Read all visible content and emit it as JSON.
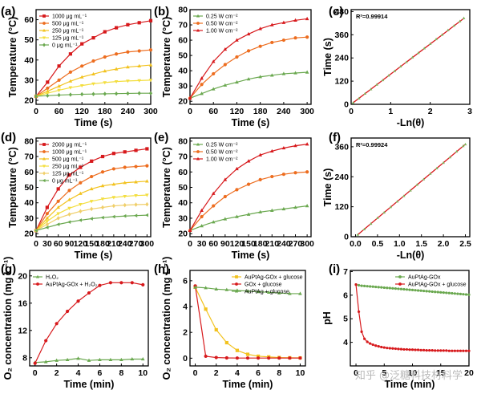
{
  "watermark": "知乎 @泛糖科技材料学",
  "chart_data": [
    {
      "id": "a",
      "label": "(a)",
      "type": "line",
      "xlabel": "Time (s)",
      "ylabel": "Temperature (°C)",
      "xlim": [
        0,
        300
      ],
      "ylim": [
        18,
        65
      ],
      "xticks": [
        0,
        60,
        120,
        180,
        240,
        300
      ],
      "yticks": [
        20,
        30,
        40,
        50,
        60
      ],
      "legend": "top-left",
      "x": [
        0,
        30,
        60,
        90,
        120,
        150,
        180,
        210,
        240,
        270,
        300
      ],
      "series": [
        {
          "name": "1000 μg mL⁻¹",
          "color": "#d7191c",
          "marker": "square",
          "values": [
            22,
            29,
            37,
            43,
            48,
            51,
            54,
            56,
            57.5,
            58.5,
            59.5
          ]
        },
        {
          "name": "500 μg mL⁻¹",
          "color": "#ed6d1f",
          "marker": "circle",
          "values": [
            22,
            26,
            30,
            34,
            37,
            39.5,
            41.5,
            43,
            44,
            44.5,
            45
          ]
        },
        {
          "name": "250 μg mL⁻¹",
          "color": "#f2c21e",
          "marker": "triangle",
          "values": [
            22,
            24.5,
            27,
            29.5,
            31.5,
            33,
            34.5,
            35.5,
            36.5,
            37,
            37.5
          ]
        },
        {
          "name": "125 μg mL⁻¹",
          "color": "#f3de3e",
          "marker": "triangle-down",
          "values": [
            22,
            23.5,
            25,
            26.3,
            27.3,
            28.2,
            28.8,
            29.3,
            29.6,
            29.8,
            30
          ]
        },
        {
          "name": "0 μg mL⁻¹",
          "color": "#6aa84f",
          "marker": "diamond",
          "values": [
            22,
            22.3,
            22.6,
            22.8,
            23,
            23.1,
            23.2,
            23.3,
            23.4,
            23.5,
            23.5
          ]
        }
      ]
    },
    {
      "id": "b",
      "label": "(b)",
      "type": "line",
      "xlabel": "Time (s)",
      "ylabel": "Temperature (°C)",
      "xlim": [
        0,
        310
      ],
      "ylim": [
        18,
        80
      ],
      "xticks": [
        0,
        60,
        120,
        180,
        240,
        300
      ],
      "yticks": [
        20,
        30,
        40,
        50,
        60,
        70,
        80
      ],
      "legend": "top-left",
      "x": [
        0,
        30,
        60,
        90,
        120,
        150,
        180,
        210,
        240,
        270,
        300
      ],
      "series": [
        {
          "name": "0.25 W cm⁻²",
          "color": "#6aa84f",
          "marker": "triangle",
          "values": [
            22,
            25,
            28,
            30.5,
            32.5,
            34.5,
            36,
            37,
            38,
            38.5,
            39
          ]
        },
        {
          "name": "0.50 W cm⁻²",
          "color": "#ed6d1f",
          "marker": "circle",
          "values": [
            22,
            31,
            38,
            44,
            49,
            53,
            56,
            58.5,
            60,
            61.5,
            62
          ]
        },
        {
          "name": "1.00 W cm⁻²",
          "color": "#d7191c",
          "marker": "triangle",
          "values": [
            22,
            35,
            46,
            54,
            60,
            64,
            67.5,
            70,
            71.5,
            73,
            74
          ]
        }
      ]
    },
    {
      "id": "c",
      "label": "(c)",
      "type": "scatter",
      "xlabel": "-Ln(θ)",
      "ylabel": "Time (s)",
      "xlim": [
        0,
        3
      ],
      "ylim": [
        0,
        490
      ],
      "xticks": [
        0,
        1,
        2,
        3
      ],
      "yticks": [
        0,
        120,
        240,
        360,
        480
      ],
      "annotation": "R²=0.99914",
      "fit": {
        "x": [
          0.05,
          2.85
        ],
        "y": [
          8,
          445
        ]
      },
      "points": {
        "x": [
          0.05,
          0.2,
          0.35,
          0.5,
          0.65,
          0.8,
          0.95,
          1.1,
          1.25,
          1.4,
          1.55,
          1.7,
          1.85,
          2.0,
          2.15,
          2.3,
          2.45,
          2.6,
          2.75,
          2.85
        ],
        "y": [
          8,
          31,
          55,
          78,
          102,
          125,
          149,
          172,
          196,
          219,
          243,
          266,
          290,
          313,
          337,
          360,
          384,
          407,
          430,
          446
        ]
      }
    },
    {
      "id": "d",
      "label": "(d)",
      "type": "line",
      "xlabel": "Time (s)",
      "ylabel": "Temperature (°C)",
      "xlim": [
        0,
        310
      ],
      "ylim": [
        18,
        82
      ],
      "xticks": [
        0,
        30,
        60,
        90,
        120,
        150,
        180,
        210,
        240,
        270,
        300
      ],
      "yticks": [
        20,
        30,
        40,
        50,
        60,
        70,
        80
      ],
      "legend": "top-left",
      "x": [
        0,
        30,
        60,
        90,
        120,
        150,
        180,
        210,
        240,
        270,
        300
      ],
      "series": [
        {
          "name": "2000 μg mL⁻¹",
          "color": "#d7191c",
          "marker": "square",
          "values": [
            22,
            37,
            49,
            58,
            63,
            67,
            70,
            72,
            73,
            74,
            75
          ]
        },
        {
          "name": "1000 μg mL⁻¹",
          "color": "#ed6d1f",
          "marker": "circle",
          "values": [
            22,
            33,
            41,
            48,
            53,
            57,
            60,
            62,
            63,
            63.5,
            64
          ]
        },
        {
          "name": "500 μg mL⁻¹",
          "color": "#f2c21e",
          "marker": "triangle",
          "values": [
            22,
            30,
            37,
            42,
            46,
            49,
            51,
            52,
            53,
            53.5,
            54
          ]
        },
        {
          "name": "250 μg mL⁻¹",
          "color": "#f3de3e",
          "marker": "triangle-down",
          "values": [
            22,
            28,
            33,
            36.5,
            39,
            41,
            42.5,
            43.5,
            44.2,
            44.7,
            45
          ]
        },
        {
          "name": "125 μg mL⁻¹",
          "color": "#f0cf6a",
          "marker": "diamond",
          "values": [
            22,
            26,
            30,
            32.5,
            34.5,
            36,
            37,
            38,
            38.5,
            38.8,
            39
          ]
        },
        {
          "name": "0 μg mL⁻¹",
          "color": "#6aa84f",
          "marker": "triangle-left",
          "values": [
            22,
            24,
            26,
            27.5,
            28.7,
            29.7,
            30.4,
            31,
            31.4,
            31.7,
            32
          ]
        }
      ]
    },
    {
      "id": "e",
      "label": "(e)",
      "type": "line",
      "xlabel": "Time (s)",
      "ylabel": "Temperature (°C)",
      "xlim": [
        0,
        310
      ],
      "ylim": [
        18,
        82
      ],
      "xticks": [
        0,
        30,
        60,
        90,
        120,
        150,
        180,
        210,
        240,
        270,
        300
      ],
      "yticks": [
        20,
        30,
        40,
        50,
        60,
        70,
        80
      ],
      "legend": "top-left",
      "x": [
        0,
        30,
        60,
        90,
        120,
        150,
        180,
        210,
        240,
        270,
        300
      ],
      "series": [
        {
          "name": "0.25 W cm⁻²",
          "color": "#6aa84f",
          "marker": "triangle",
          "values": [
            22,
            25,
            27.5,
            29.5,
            31,
            32.5,
            34,
            35,
            36,
            37,
            38
          ]
        },
        {
          "name": "0.50 W cm⁻²",
          "color": "#ed6d1f",
          "marker": "circle",
          "values": [
            22,
            31,
            38,
            44,
            48.5,
            52,
            55,
            57,
            58.5,
            59.5,
            60
          ]
        },
        {
          "name": "1.00 W cm⁻²",
          "color": "#d7191c",
          "marker": "triangle",
          "values": [
            22,
            35,
            46,
            55,
            62,
            67,
            71,
            73.5,
            75.5,
            77,
            78
          ]
        }
      ]
    },
    {
      "id": "f",
      "label": "(f)",
      "type": "scatter",
      "xlabel": "-Ln(θ)",
      "ylabel": "Time (s)",
      "xlim": [
        -0.1,
        2.6
      ],
      "ylim": [
        0,
        395
      ],
      "xticks": [
        0.0,
        0.5,
        1.0,
        1.5,
        2.0,
        2.5
      ],
      "yticks": [
        0,
        120,
        240,
        360
      ],
      "annotation": "R²=0.99924",
      "fit": {
        "x": [
          0.05,
          2.5
        ],
        "y": [
          8,
          370
        ]
      },
      "points": {
        "x": [
          0.05,
          0.2,
          0.35,
          0.5,
          0.65,
          0.8,
          0.95,
          1.1,
          1.25,
          1.4,
          1.55,
          1.7,
          1.85,
          2.0,
          2.15,
          2.3,
          2.45,
          2.5
        ],
        "y": [
          8,
          30,
          52,
          75,
          97,
          119,
          141,
          163,
          185,
          208,
          230,
          252,
          274,
          296,
          318,
          341,
          363,
          370
        ]
      }
    },
    {
      "id": "g",
      "label": "(g)",
      "type": "line",
      "xlabel": "Time (min)",
      "ylabel": "O₂ concentration (mg L⁻¹)",
      "xlim": [
        -0.5,
        10.5
      ],
      "ylim": [
        6.8,
        20.8
      ],
      "xticks": [
        0,
        2,
        4,
        6,
        8,
        10
      ],
      "yticks": [
        8,
        12,
        16,
        20
      ],
      "legend": "top-left",
      "x": [
        0,
        1,
        2,
        3,
        4,
        5,
        6,
        7,
        8,
        9,
        10
      ],
      "series": [
        {
          "name": "H₂O₂",
          "color": "#6aa84f",
          "marker": "triangle",
          "values": [
            7.3,
            7.4,
            7.6,
            7.7,
            7.9,
            7.6,
            7.7,
            7.7,
            7.7,
            7.8,
            7.8
          ]
        },
        {
          "name": "AuPtAg-GOx + H₂O₂",
          "color": "#d7191c",
          "marker": "circle",
          "values": [
            7.2,
            10.5,
            13.0,
            14.8,
            16.3,
            17.5,
            18.6,
            19.0,
            19.0,
            19.0,
            18.7
          ]
        }
      ]
    },
    {
      "id": "h",
      "label": "(h)",
      "type": "line",
      "xlabel": "Time (min)",
      "ylabel": "O₂ concentration (mg L⁻¹)",
      "xlim": [
        -0.5,
        10.5
      ],
      "ylim": [
        -0.6,
        6.8
      ],
      "xticks": [
        0,
        2,
        4,
        6,
        8,
        10
      ],
      "yticks": [
        0,
        2,
        4,
        6
      ],
      "legend": "top-right",
      "x": [
        0,
        1,
        2,
        3,
        4,
        5,
        6,
        7,
        8,
        9,
        10
      ],
      "series": [
        {
          "name": "AuPtAg-GOx + glucose",
          "color": "#f2c21e",
          "marker": "square",
          "values": [
            5.5,
            3.8,
            2.2,
            1.2,
            0.6,
            0.3,
            0.15,
            0.1,
            0.05,
            0.03,
            0.02
          ]
        },
        {
          "name": "GOx + glucose",
          "color": "#d7191c",
          "marker": "circle",
          "values": [
            5.6,
            0.15,
            0.05,
            0.02,
            0.01,
            0.01,
            0.01,
            0.01,
            0.01,
            0.01,
            0.01
          ]
        },
        {
          "name": "AuPtAg + glucose",
          "color": "#6aa84f",
          "marker": "triangle",
          "values": [
            5.5,
            5.45,
            5.35,
            5.3,
            5.25,
            5.2,
            5.15,
            5.1,
            5.05,
            5.0,
            5.0
          ]
        }
      ]
    },
    {
      "id": "i",
      "label": "(i)",
      "type": "line",
      "xlabel": "Time (min)",
      "ylabel": "pH",
      "xlim": [
        -1,
        20
      ],
      "ylim": [
        3.0,
        7.05
      ],
      "xticks": [
        0,
        5,
        10,
        15,
        20
      ],
      "yticks": [
        4,
        5,
        6,
        7
      ],
      "legend": "top-right",
      "x": [
        0,
        0.5,
        1,
        1.5,
        2,
        2.5,
        3,
        3.5,
        4,
        4.5,
        5,
        5.5,
        6,
        6.5,
        7,
        7.5,
        8,
        8.5,
        9,
        9.5,
        10,
        10.5,
        11,
        11.5,
        12,
        12.5,
        13,
        13.5,
        14,
        14.5,
        15,
        15.5,
        16,
        16.5,
        17,
        17.5,
        18,
        18.5,
        19,
        19.5,
        20
      ],
      "series": [
        {
          "name": "AuPtAg-GOx",
          "color": "#6aa84f",
          "marker": "circle",
          "values": [
            6.45,
            6.42,
            6.4,
            6.39,
            6.38,
            6.37,
            6.36,
            6.35,
            6.34,
            6.33,
            6.32,
            6.31,
            6.3,
            6.29,
            6.28,
            6.27,
            6.26,
            6.25,
            6.24,
            6.23,
            6.22,
            6.21,
            6.2,
            6.19,
            6.18,
            6.17,
            6.16,
            6.15,
            6.14,
            6.13,
            6.12,
            6.11,
            6.1,
            6.09,
            6.08,
            6.07,
            6.06,
            6.05,
            6.04,
            6.03,
            6.02
          ]
        },
        {
          "name": "AuPtAg-GOx + glucose",
          "color": "#d7191c",
          "marker": "circle",
          "values": [
            6.45,
            5.3,
            4.45,
            4.15,
            4.02,
            3.95,
            3.9,
            3.86,
            3.83,
            3.8,
            3.78,
            3.76,
            3.75,
            3.74,
            3.73,
            3.72,
            3.71,
            3.7,
            3.7,
            3.69,
            3.69,
            3.68,
            3.68,
            3.67,
            3.67,
            3.66,
            3.66,
            3.66,
            3.65,
            3.65,
            3.65,
            3.65,
            3.65,
            3.64,
            3.64,
            3.64,
            3.64,
            3.64,
            3.64,
            3.64,
            3.64
          ]
        }
      ]
    }
  ]
}
